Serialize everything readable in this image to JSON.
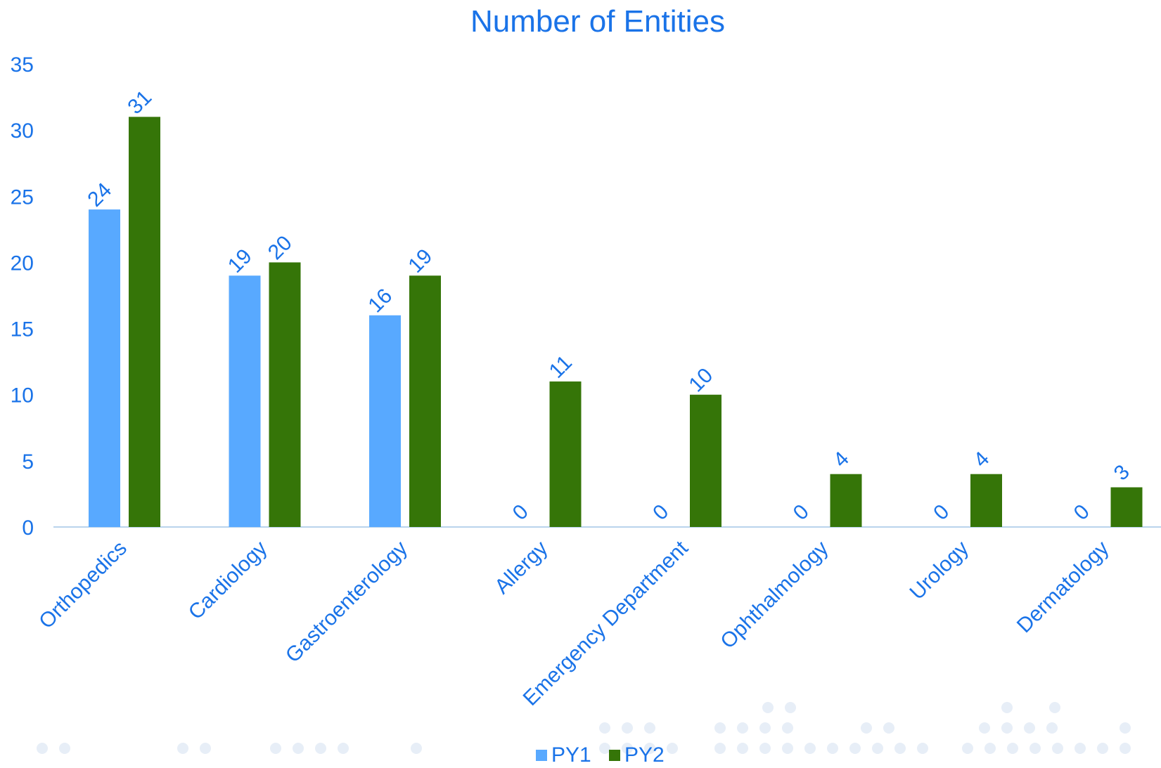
{
  "colors": {
    "text": "#1a73e8",
    "py1": "#58a9ff",
    "py2": "#357508",
    "axis_line": "#b9d3ec",
    "decor_dots": "#e7eef7"
  },
  "chart_data": {
    "type": "bar",
    "title": "Number of Entities",
    "xlabel": "",
    "ylabel": "",
    "ylim": [
      0,
      35
    ],
    "yticks": [
      0,
      5,
      10,
      15,
      20,
      25,
      30,
      35
    ],
    "grid": false,
    "legend_position": "bottom",
    "categories": [
      "Orthopedics",
      "Cardiology",
      "Gastroenterology",
      "Allergy",
      "Emergency Department",
      "Ophthalmology",
      "Urology",
      "Dermatology"
    ],
    "series": [
      {
        "name": "PY1",
        "color": "#58a9ff",
        "values": [
          24,
          19,
          16,
          0,
          0,
          0,
          0,
          0
        ]
      },
      {
        "name": "PY2",
        "color": "#357508",
        "values": [
          31,
          20,
          19,
          11,
          10,
          4,
          4,
          3
        ]
      }
    ]
  }
}
